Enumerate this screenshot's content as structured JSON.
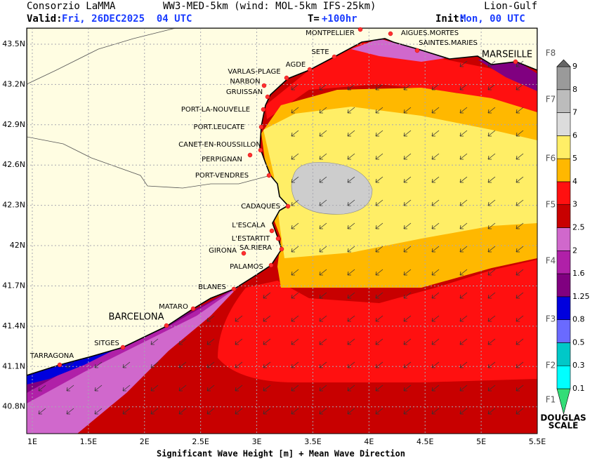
{
  "header": {
    "agency": "Consorzio LaMMA",
    "model": "WW3-MED-5km (wind: MOL-5km IFS-25km)",
    "area": "Lion-Gulf",
    "valid_label": "Valid:",
    "valid": "Fri, 26DEC2025  04 UTC",
    "step_label": "T=",
    "step": "+100hr",
    "init_label": "Init:",
    "init": "Mon, 00 UTC"
  },
  "map": {
    "xlim": [
      0.95,
      5.5
    ],
    "ylim": [
      40.6,
      43.62
    ],
    "xticks": [
      {
        "value": 1,
        "label": "1E"
      },
      {
        "value": 1.5,
        "label": "1.5E"
      },
      {
        "value": 2,
        "label": "2E"
      },
      {
        "value": 2.5,
        "label": "2.5E"
      },
      {
        "value": 3,
        "label": "3E"
      },
      {
        "value": 3.5,
        "label": "3.5E"
      },
      {
        "value": 4,
        "label": "4E"
      },
      {
        "value": 4.5,
        "label": "4.5E"
      },
      {
        "value": 5,
        "label": "5E"
      },
      {
        "value": 5.5,
        "label": "5.5E"
      }
    ],
    "yticks": [
      {
        "value": 43.5,
        "label": "43.5N"
      },
      {
        "value": 43.2,
        "label": "43.2N"
      },
      {
        "value": 42.9,
        "label": "42.9N"
      },
      {
        "value": 42.6,
        "label": "42.6N"
      },
      {
        "value": 42.3,
        "label": "42.3N"
      },
      {
        "value": 42,
        "label": "42N"
      },
      {
        "value": 41.7,
        "label": "41.7N"
      },
      {
        "value": 41.4,
        "label": "41.4N"
      },
      {
        "value": 41.1,
        "label": "41.1N"
      },
      {
        "value": 40.8,
        "label": "40.8N"
      }
    ],
    "cities": [
      "MONTPELLIER",
      "AIGUES.MORTES",
      "SAINTES.MARIES",
      "MARSEILLE",
      "SETE",
      "AGDE",
      "VARLAS-PLAGE",
      "NARBON",
      "GRUISSAN",
      "PORT-LA-NOUVELLE",
      "PORT.LEUCATE",
      "CANET-EN-ROUSSILLON",
      "PERPIGNAN",
      "PORT-VENDRES",
      "CADAQUES",
      "L'ESCALA",
      "L'ESTARTIT",
      "SA.RIERA",
      "GIRONA",
      "PALAMOS",
      "BLANES",
      "MATARO",
      "BARCELONA",
      "SITGES",
      "TARRAGONA"
    ],
    "caption": "Significant Wave Height [m] + Mean Wave Direction"
  },
  "colorbar": {
    "levels": [
      0.1,
      0.3,
      0.5,
      0.8,
      1.25,
      1.6,
      2,
      2.5,
      3,
      4,
      5,
      6,
      7,
      8,
      9
    ],
    "colors": [
      "#33dd77",
      "#00ffff",
      "#00c8c8",
      "#6a6aff",
      "#0000dd",
      "#800080",
      "#b020a8",
      "#d068cc",
      "#c80000",
      "#ff1010",
      "#ffb800",
      "#ffee66",
      "#dcdcdc",
      "#bcbcbc",
      "#9a9a9a",
      "#666666"
    ],
    "douglas": [
      "F1",
      "F2",
      "F3",
      "F4",
      "F5",
      "F6",
      "F7",
      "F8"
    ],
    "title": [
      "DOUGLAS",
      "SCALE"
    ]
  }
}
